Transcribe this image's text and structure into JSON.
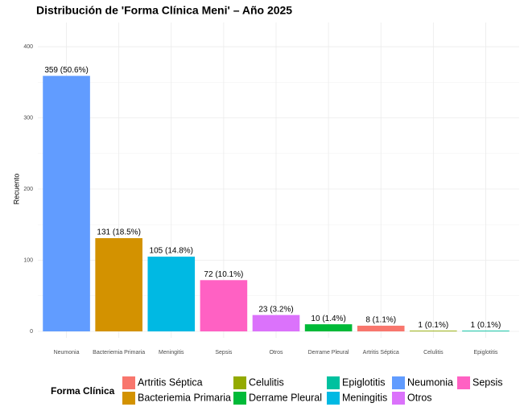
{
  "chart_data": {
    "type": "bar",
    "title": "Distribución de 'Forma Clínica Meni' – Año 2025",
    "y_label": "Recuento",
    "categories": [
      "Neumonia",
      "Bacteriemia Primaria",
      "Meningitis",
      "Sepsis",
      "Otros",
      "Derrame Pleural",
      "Artritis Séptica",
      "Celulitis",
      "Epiglotitis"
    ],
    "values": [
      359,
      131,
      105,
      72,
      23,
      10,
      8,
      1,
      1
    ],
    "value_labels": [
      "359 (50.6%)",
      "131 (18.5%)",
      "105 (14.8%)",
      "72 (10.1%)",
      "23 (3.2%)",
      "10 (1.4%)",
      "8 (1.1%)",
      "1 (0.1%)",
      "1 (0.1%)"
    ],
    "colors": [
      "#619CFF",
      "#D39200",
      "#00B9E3",
      "#FF61C3",
      "#DB72FB",
      "#00BA38",
      "#F8766D",
      "#93AA00",
      "#00C19F"
    ],
    "ylim": [
      0,
      430
    ],
    "yticks": [
      0,
      100,
      200,
      300,
      400
    ],
    "minor_yticks": [
      50,
      150,
      250,
      350
    ],
    "grid": true,
    "legend": {
      "title": "Forma Clínica",
      "position": "bottom",
      "entries": [
        {
          "name": "Artritis Séptica",
          "color": "#F8766D"
        },
        {
          "name": "Bacteriemia Primaria",
          "color": "#D39200"
        },
        {
          "name": "Celulitis",
          "color": "#93AA00"
        },
        {
          "name": "Derrame Pleural",
          "color": "#00BA38"
        },
        {
          "name": "Epiglotitis",
          "color": "#00C19F"
        },
        {
          "name": "Meningitis",
          "color": "#00B9E3"
        },
        {
          "name": "Neumonia",
          "color": "#619CFF"
        },
        {
          "name": "Otros",
          "color": "#DB72FB"
        },
        {
          "name": "Sepsis",
          "color": "#FF61C3"
        }
      ]
    }
  }
}
